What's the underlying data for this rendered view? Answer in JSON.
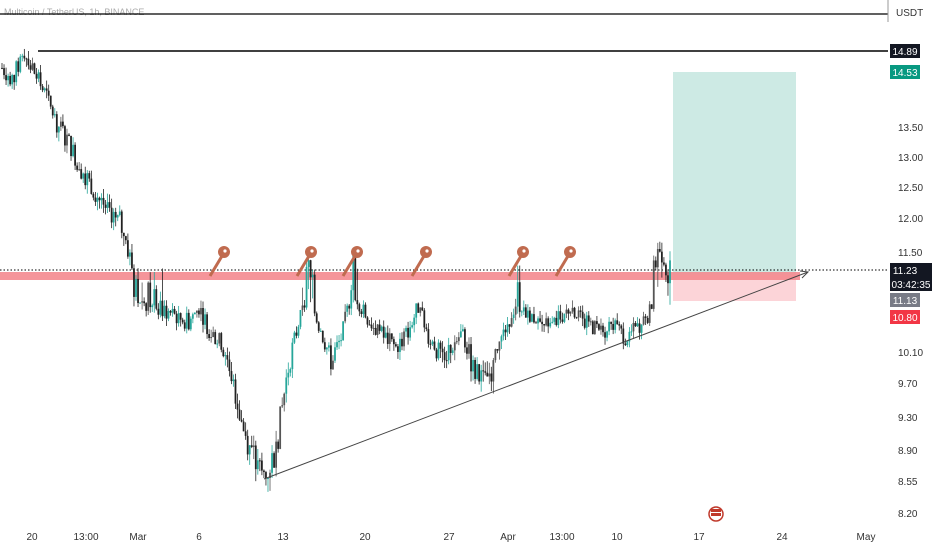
{
  "header": {
    "symbol_text": "Multicoin / TetherUS, 1h, BINANCE",
    "currency": "USDT"
  },
  "axis": {
    "y_ticks": [
      "14.89",
      "14.53",
      "13.50",
      "13.00",
      "12.50",
      "12.00",
      "11.50",
      "11.23",
      "11.13",
      "10.80",
      "10.10",
      "9.70",
      "9.30",
      "8.90",
      "8.55",
      "8.20"
    ],
    "x_ticks": [
      "20",
      "13:00",
      "Mar",
      "6",
      "13",
      "20",
      "27",
      "Apr",
      "13:00",
      "10",
      "17",
      "24",
      "May"
    ]
  },
  "price_badges": {
    "top_line": "14.89",
    "target": "14.53",
    "current": "11.23",
    "countdown": "03:42:35",
    "entry": "11.13",
    "stop": "10.80"
  },
  "colors": {
    "up": "#26a69a",
    "down": "#222222",
    "candle_light": "#555555",
    "resistance_band": "#f48a8f",
    "target_zone": "#cdeae4",
    "stop_zone": "#fcd4d8",
    "key_icon": "#c06b4f",
    "badge_dark": "#131722",
    "badge_green": "#089981",
    "badge_grey": "#787b86",
    "badge_red": "#f23645"
  },
  "chart_data": {
    "type": "line",
    "title": "",
    "xlabel": "",
    "ylabel": "",
    "ylim": [
      8.2,
      15.2
    ],
    "series": [
      {
        "values": [
          14.6,
          14.4,
          14.9,
          14.5,
          14.1,
          13.6,
          13.3,
          12.9,
          12.6,
          12.3,
          12.1,
          11.9,
          11.2,
          11.1,
          11.0,
          10.9,
          10.8,
          10.7,
          11.0,
          10.5,
          10.3,
          9.8,
          9.2,
          8.8,
          8.6,
          8.9,
          9.8,
          10.6,
          11.3,
          10.6,
          10.0,
          10.4,
          11.4,
          10.9,
          10.6,
          10.4,
          10.2,
          10.5,
          11.0,
          10.4,
          10.1,
          10.2,
          10.5,
          9.9,
          9.7,
          10.0,
          10.6,
          11.1,
          10.9,
          10.7,
          10.6,
          10.8,
          11.0,
          10.7,
          10.6,
          10.5,
          10.6,
          10.4,
          10.6,
          10.8,
          11.6,
          11.23
        ]
      }
    ],
    "resistance_level": 11.15,
    "top_line_level": 14.89,
    "trendline": {
      "from": {
        "x": "Mar 9",
        "y": 8.6
      },
      "to": {
        "x": "Apr 24",
        "y": 11.28
      }
    },
    "long_position": {
      "entry": 11.13,
      "target": 14.53,
      "stop": 10.8
    },
    "grid": false,
    "legend": "none"
  }
}
